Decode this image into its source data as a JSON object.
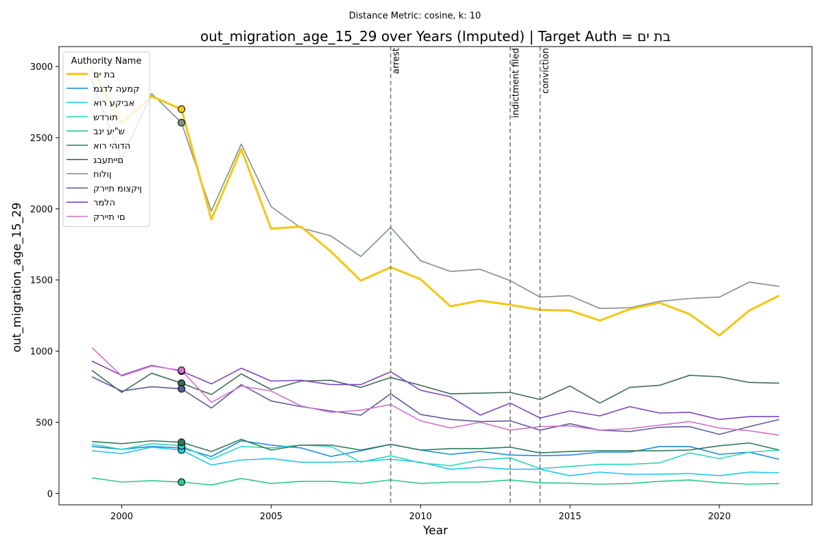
{
  "chart_data": {
    "type": "line",
    "suptitle": "Distance Metric: cosine, k: 10",
    "title": "out_migration_age_15_29 over Years (Imputed) | Target Auth = בת ים",
    "xlabel": "Year",
    "ylabel": "out_migration_age_15_29",
    "xlim": [
      1997.9,
      2023.1
    ],
    "ylim": [
      -80,
      3140
    ],
    "xticks": [
      2000,
      2005,
      2010,
      2015,
      2020
    ],
    "yticks": [
      0,
      500,
      1000,
      1500,
      2000,
      2500,
      3000
    ],
    "grid": false,
    "legend": {
      "title": "Authority Name",
      "placement": "top-left"
    },
    "x": [
      1999,
      2000,
      2001,
      2002,
      2003,
      2004,
      2005,
      2006,
      2007,
      2008,
      2009,
      2010,
      2011,
      2012,
      2013,
      2014,
      2015,
      2016,
      2017,
      2018,
      2019,
      2020,
      2021,
      2022
    ],
    "events": [
      {
        "label": "arrest",
        "x": 2009
      },
      {
        "label": "indictment filed",
        "x": 2013
      },
      {
        "label": "conviction",
        "x": 2014
      }
    ],
    "imputed_marker_x": 2002,
    "series": [
      {
        "name": "בת ים",
        "color": "#f2c81c",
        "target": true,
        "values": [
          2990,
          2600,
          2790,
          2700,
          1925,
          2420,
          1860,
          1875,
          1700,
          1495,
          1590,
          1505,
          1315,
          1355,
          1325,
          1290,
          1285,
          1215,
          1295,
          1340,
          1260,
          1110,
          1285,
          1390
        ]
      },
      {
        "name": "קמעה לדגמ",
        "color": "#1f8ae0",
        "values": [
          330,
          310,
          330,
          320,
          260,
          370,
          340,
          320,
          260,
          300,
          345,
          305,
          275,
          295,
          270,
          265,
          270,
          290,
          290,
          330,
          330,
          275,
          290,
          240
        ]
      },
      {
        "name": "אביקע רוא",
        "color": "#22c6ee",
        "values": [
          300,
          280,
          325,
          305,
          200,
          235,
          245,
          220,
          220,
          225,
          240,
          220,
          170,
          185,
          170,
          170,
          125,
          150,
          135,
          135,
          140,
          125,
          150,
          145
        ]
      },
      {
        "name": "תורדש",
        "color": "#2ad6c0",
        "values": [
          345,
          310,
          350,
          335,
          240,
          330,
          320,
          340,
          330,
          220,
          265,
          215,
          195,
          235,
          250,
          175,
          190,
          205,
          205,
          215,
          285,
          245,
          290,
          305
        ]
      },
      {
        "name": "ש\"יע ינב",
        "color": "#2bc98b",
        "values": [
          110,
          80,
          90,
          80,
          60,
          105,
          70,
          85,
          85,
          70,
          95,
          70,
          80,
          80,
          95,
          75,
          72,
          65,
          70,
          85,
          95,
          75,
          65,
          70
        ]
      },
      {
        "name": "הדוהי רוא",
        "color": "#2e7a5a",
        "values": [
          365,
          350,
          370,
          360,
          295,
          380,
          305,
          340,
          340,
          305,
          345,
          305,
          315,
          315,
          325,
          285,
          295,
          300,
          300,
          300,
          305,
          335,
          355,
          305
        ]
      },
      {
        "name": "םייתעבג",
        "color": "#3c6a58",
        "values": [
          865,
          710,
          845,
          775,
          695,
          840,
          730,
          790,
          795,
          745,
          815,
          760,
          700,
          705,
          710,
          660,
          755,
          635,
          745,
          760,
          830,
          820,
          780,
          775
        ]
      },
      {
        "name": "ןולוח",
        "color": "#7e8e88",
        "values": [
          2900,
          2350,
          2810,
          2605,
          1985,
          2455,
          2015,
          1865,
          1810,
          1665,
          1870,
          1635,
          1560,
          1575,
          1495,
          1380,
          1390,
          1300,
          1305,
          1350,
          1370,
          1380,
          1485,
          1455
        ]
      },
      {
        "name": "ןיקצומ תיירק",
        "color": "#5a5c9a",
        "values": [
          820,
          720,
          750,
          735,
          600,
          765,
          650,
          610,
          580,
          550,
          700,
          555,
          520,
          505,
          510,
          445,
          490,
          445,
          435,
          465,
          470,
          415,
          470,
          520
        ]
      },
      {
        "name": "הלמר",
        "color": "#7e44b8",
        "values": [
          930,
          830,
          900,
          860,
          770,
          880,
          790,
          795,
          765,
          765,
          855,
          725,
          680,
          550,
          635,
          530,
          580,
          545,
          610,
          565,
          570,
          520,
          540,
          540
        ]
      },
      {
        "name": "םי תיירק",
        "color": "#d070cc",
        "values": [
          1025,
          825,
          895,
          865,
          640,
          755,
          720,
          615,
          570,
          585,
          625,
          510,
          460,
          500,
          445,
          470,
          475,
          445,
          455,
          480,
          505,
          460,
          440,
          410
        ]
      }
    ]
  }
}
